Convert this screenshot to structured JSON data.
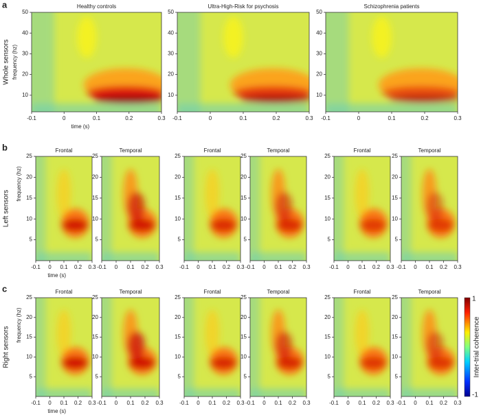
{
  "figure": {
    "groups": [
      "Healthy controls",
      "Ultra-High-Risk for psychosis",
      "Schizophrenia patients"
    ],
    "rows": [
      {
        "letter": "a",
        "label": "Whole sensors",
        "ylabel": "frequency (hz)",
        "xlabel": "time (s)",
        "ylim": [
          2,
          50
        ],
        "yticks": [
          10,
          20,
          30,
          40,
          50
        ],
        "xlim": [
          -0.1,
          0.3
        ],
        "xticks": [
          -0.1,
          0,
          0.1,
          0.2,
          0.3
        ]
      },
      {
        "letter": "b",
        "label": "Left sensors",
        "subpanels": [
          "Frontal",
          "Temporal"
        ],
        "ylabel": "frequency (hz)",
        "xlabel": "time (s)",
        "ylim": [
          0,
          25
        ],
        "yticks": [
          5,
          10,
          15,
          20,
          25
        ],
        "xlim": [
          -0.1,
          0.3
        ],
        "xticks": [
          -0.1,
          0,
          0.1,
          0.2,
          0.3
        ]
      },
      {
        "letter": "c",
        "label": "Right sensors",
        "subpanels": [
          "Frontal",
          "Temporal"
        ],
        "ylabel": "frequency (hz)",
        "xlabel": "time (s)",
        "ylim": [
          0,
          25
        ],
        "yticks": [
          5,
          10,
          15,
          20,
          25
        ],
        "xlim": [
          -0.1,
          0.3
        ],
        "xticks": [
          -0.1,
          0,
          0.1,
          0.2,
          0.3
        ]
      }
    ],
    "colorbar": {
      "lim": [
        -1,
        1
      ],
      "label": "Inter-trial coherence"
    }
  }
}
